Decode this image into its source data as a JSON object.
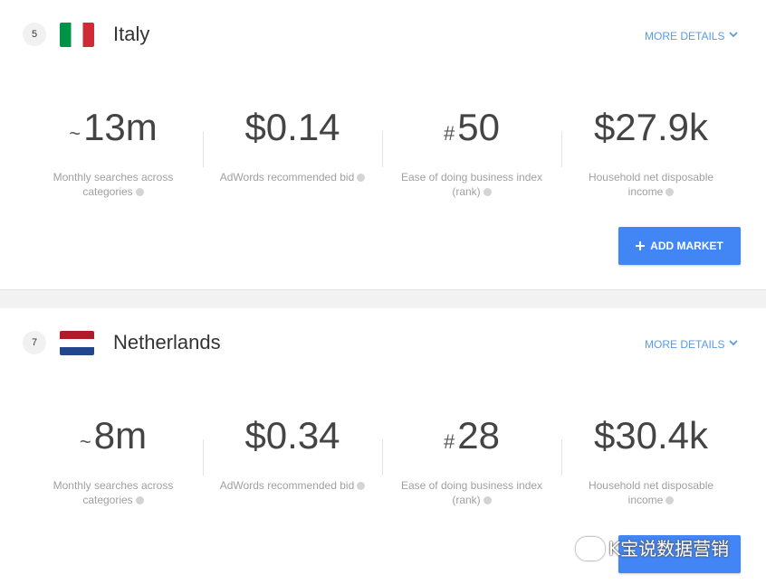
{
  "markets": [
    {
      "rank": 5,
      "name": "Italy",
      "more_details": "MORE DETAILS",
      "stats": [
        {
          "prefix": "~",
          "value": "13m",
          "label": "Monthly searches across categories"
        },
        {
          "value": "$0.14",
          "label": "AdWords recommended bid"
        },
        {
          "prefix": "#",
          "value": "50",
          "label": "Ease of doing business index (rank)"
        },
        {
          "value": "$27.9k",
          "label": "Household net disposable income"
        }
      ],
      "button": "ADD MARKET"
    },
    {
      "rank": 7,
      "name": "Netherlands",
      "more_details": "MORE DETAILS",
      "stats": [
        {
          "prefix": "~",
          "value": "8m",
          "label": "Monthly searches across categories"
        },
        {
          "value": "$0.34",
          "label": "AdWords recommended bid"
        },
        {
          "prefix": "#",
          "value": "28",
          "label": "Ease of doing business index (rank)"
        },
        {
          "value": "$30.4k",
          "label": "Household net disposable income"
        }
      ]
    }
  ],
  "watermark": "K宝说数据营销"
}
